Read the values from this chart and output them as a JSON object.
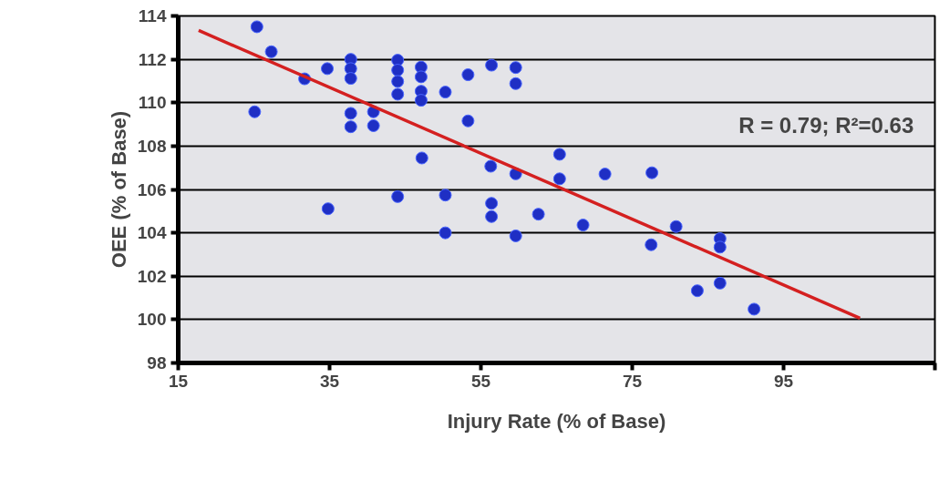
{
  "chart_data": {
    "type": "scatter",
    "xlabel": "Injury Rate (% of Base)",
    "ylabel": "OEE (% of Base)",
    "xlim": [
      15,
      115
    ],
    "xticks": [
      15,
      35,
      55,
      75,
      95,
      {
        "value": 115,
        "label": null
      }
    ],
    "ylim": [
      98,
      114
    ],
    "yticks": [
      98,
      100,
      102,
      104,
      106,
      108,
      110,
      112,
      114
    ],
    "grid": "y",
    "marker": "circle",
    "annotations": [
      "R = 0.79; R²=0.63"
    ],
    "series": [
      {
        "color": "#1f2fc4",
        "x": [
          25.4,
          27.3,
          31.7,
          34.7,
          37.8,
          37.8,
          37.8,
          25.1,
          37.8,
          37.8,
          40.8,
          40.8,
          44.0,
          44.0,
          44.0,
          44.0,
          47.1,
          47.1,
          47.1,
          47.1,
          50.3,
          53.3,
          56.4,
          59.6,
          59.6,
          53.3,
          47.2,
          56.3,
          59.6,
          34.8,
          44.0,
          50.3,
          56.4,
          56.4,
          62.6,
          50.3,
          59.6,
          65.4,
          65.4,
          71.4,
          77.6,
          68.5,
          80.8,
          77.5,
          86.6,
          86.6,
          86.6,
          83.6,
          91.1
        ],
        "values": [
          113.5,
          112.35,
          111.1,
          111.57,
          112.0,
          111.57,
          111.12,
          109.58,
          109.51,
          108.89,
          109.58,
          108.94,
          111.96,
          111.5,
          110.98,
          110.39,
          111.64,
          111.19,
          110.53,
          110.11,
          110.49,
          111.29,
          111.73,
          111.62,
          110.88,
          109.16,
          107.45,
          107.07,
          106.72,
          105.11,
          105.67,
          105.74,
          105.36,
          104.75,
          104.86,
          104.0,
          103.86,
          107.62,
          106.49,
          106.71,
          106.77,
          104.36,
          104.29,
          103.45,
          103.73,
          103.34,
          101.68,
          101.33,
          100.48
        ]
      },
      {
        "type": "line",
        "color": "#d42020",
        "x": [
          17.7,
          105.1
        ],
        "values": [
          113.33,
          100.06
        ],
        "marker": "none",
        "line_style": "solid"
      }
    ]
  }
}
